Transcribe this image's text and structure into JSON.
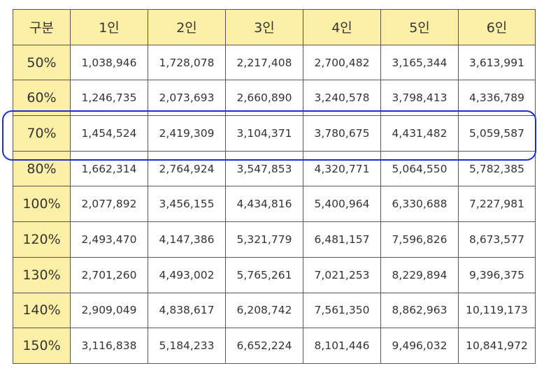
{
  "table": {
    "corner_label": "구분",
    "columns": [
      "1인",
      "2인",
      "3인",
      "4인",
      "5인",
      "6인"
    ],
    "rows": [
      {
        "label": "50%",
        "values": [
          "1,038,946",
          "1,728,078",
          "2,217,408",
          "2,700,482",
          "3,165,344",
          "3,613,991"
        ]
      },
      {
        "label": "60%",
        "values": [
          "1,246,735",
          "2,073,693",
          "2,660,890",
          "3,240,578",
          "3,798,413",
          "4,336,789"
        ]
      },
      {
        "label": "70%",
        "values": [
          "1,454,524",
          "2,419,309",
          "3,104,371",
          "3,780,675",
          "4,431,482",
          "5,059,587"
        ]
      },
      {
        "label": "80%",
        "values": [
          "1,662,314",
          "2,764,924",
          "3,547,853",
          "4,320,771",
          "5,064,550",
          "5,782,385"
        ]
      },
      {
        "label": "100%",
        "values": [
          "2,077,892",
          "3,456,155",
          "4,434,816",
          "5,400,964",
          "6,330,688",
          "7,227,981"
        ]
      },
      {
        "label": "120%",
        "values": [
          "2,493,470",
          "4,147,386",
          "5,321,779",
          "6,481,157",
          "7,596,826",
          "8,673,577"
        ]
      },
      {
        "label": "130%",
        "values": [
          "2,701,260",
          "4,493,002",
          "5,765,261",
          "7,021,253",
          "8,229,894",
          "9,396,375"
        ]
      },
      {
        "label": "140%",
        "values": [
          "2,909,049",
          "4,838,617",
          "6,208,742",
          "7,561,350",
          "8,862,963",
          "10,119,173"
        ]
      },
      {
        "label": "150%",
        "values": [
          "3,116,838",
          "5,184,233",
          "6,652,224",
          "8,101,446",
          "9,496,032",
          "10,841,972"
        ]
      }
    ],
    "highlighted_row": "70%",
    "colors": {
      "header_bg": "#fdf0a6",
      "border": "#555555",
      "highlight": "#1a2fd0",
      "text": "#333333"
    }
  }
}
